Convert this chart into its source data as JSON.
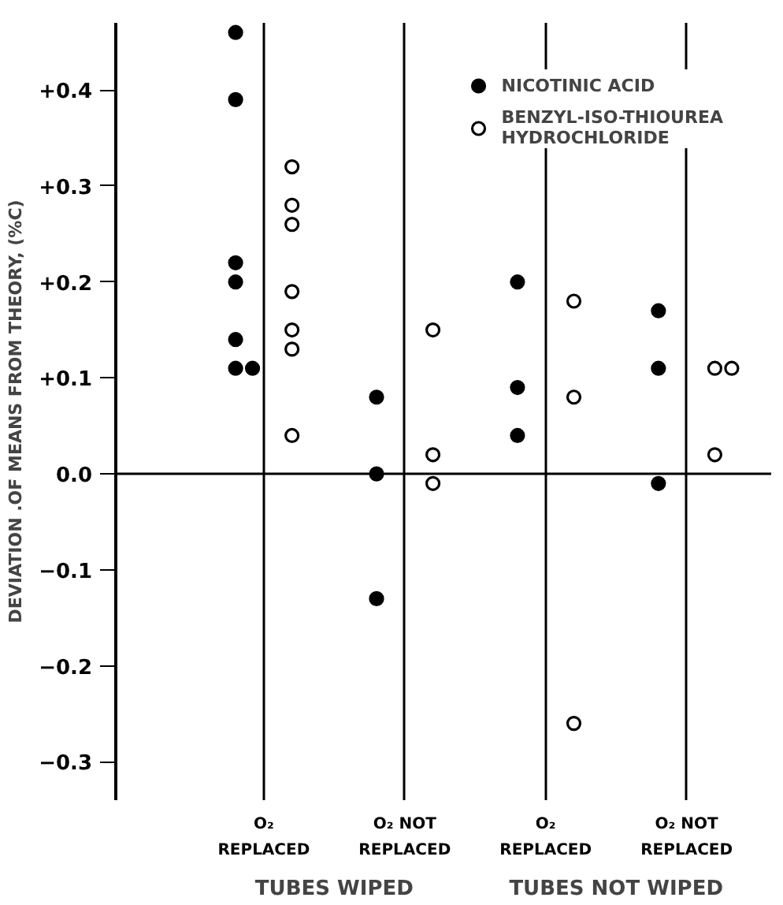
{
  "chart_data": {
    "type": "scatter",
    "ylabel": "DEVIATION .OF MEANS FROM THEORY, (%C)",
    "categories": [
      "O₂\nREPLACED",
      "O₂ NOT\nREPLACED",
      "O₂\nREPLACED",
      "O₂ NOT\nREPLACED"
    ],
    "ylim": [
      -0.34,
      0.47
    ],
    "yticks": [
      -0.3,
      -0.2,
      -0.1,
      {
        "value": 0,
        "label": "0.0"
      },
      {
        "value": 0.1,
        "label": "+0.1"
      },
      {
        "value": 0.2,
        "label": "+0.2"
      },
      {
        "value": 0.3,
        "label": "+0.3"
      },
      {
        "value": 0.4,
        "label": "+0.4"
      }
    ],
    "annotations": [
      "TUBES WIPED",
      "TUBES NOT WIPED"
    ],
    "ref_lines": [
      {
        "axis": "y",
        "value": 0,
        "color": "#000000"
      }
    ],
    "grid": "x",
    "legend": "top right",
    "marker": "circle",
    "series": [
      {
        "name": "NICOTINIC ACID",
        "color": "#000000",
        "values": [
          0.46,
          0.08,
          0.2,
          0.17
        ]
      },
      {
        "color": "#000000",
        "values": [
          0.39,
          0.0,
          0.09,
          0.11
        ]
      },
      {
        "color": "#000000",
        "values": [
          0.22,
          -0.13,
          0.04,
          -0.01
        ]
      },
      {
        "color": "#000000",
        "values": [
          0.2,
          null,
          null,
          null
        ]
      },
      {
        "color": "#000000",
        "values": [
          0.14,
          null,
          null,
          null
        ]
      },
      {
        "color": "#000000",
        "values": [
          0.11,
          null,
          null,
          null
        ]
      },
      {
        "color": "#000000",
        "values": [
          0.11,
          null,
          null,
          null
        ]
      },
      {
        "name": "BENZYL-ISO-THIOUREA\nHYDROCHLORIDE",
        "color": "#ffffff",
        "values": [
          0.32,
          0.15,
          0.18,
          0.11
        ]
      },
      {
        "color": "#ffffff",
        "values": [
          0.28,
          0.02,
          0.08,
          0.11
        ]
      },
      {
        "color": "#ffffff",
        "values": [
          0.26,
          -0.01,
          -0.26,
          0.02
        ]
      },
      {
        "color": "#ffffff",
        "values": [
          0.19,
          null,
          null,
          null
        ]
      },
      {
        "color": "#ffffff",
        "values": [
          0.15,
          null,
          null,
          null
        ]
      },
      {
        "color": "#ffffff",
        "values": [
          0.13,
          null,
          null,
          null
        ]
      },
      {
        "color": "#ffffff",
        "values": [
          0.04,
          null,
          null,
          null
        ]
      }
    ]
  }
}
